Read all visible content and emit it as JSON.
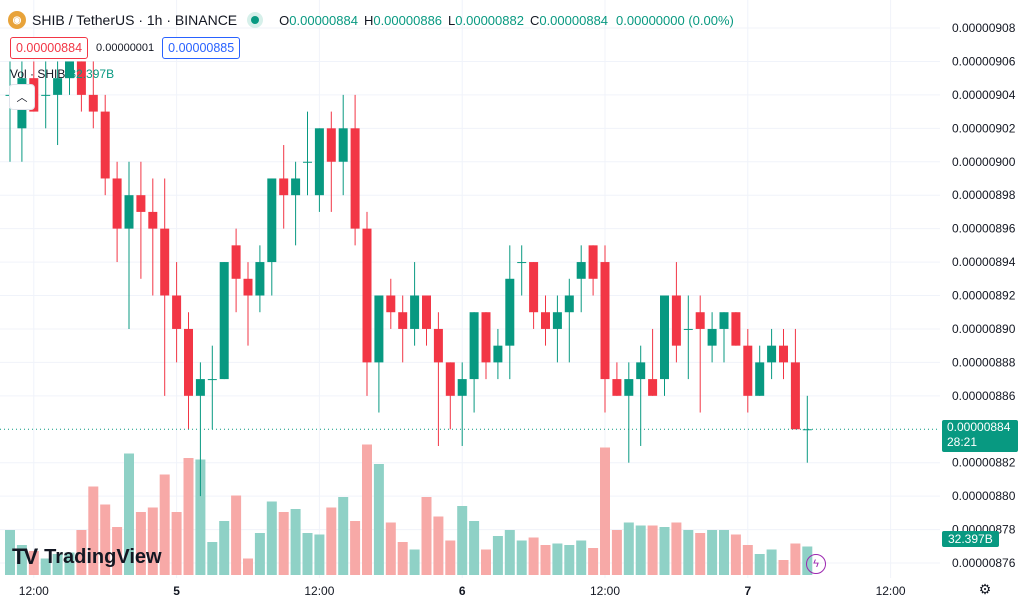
{
  "header": {
    "symbol": "SHIB",
    "separator": "/",
    "quote": "TetherUS",
    "interval": "1h",
    "exchange": "BINANCE",
    "title": "SHIB / TetherUS · 1h · BINANCE",
    "logo_icon": "shib-logo-icon",
    "market_status": "market-open-dot-icon"
  },
  "ohlc": {
    "o_label": "O",
    "o": "0.00000884",
    "h_label": "H",
    "h": "0.00000886",
    "l_label": "L",
    "l": "0.00000882",
    "c_label": "C",
    "c": "0.00000884",
    "change": "0.00000000 (0.00%)"
  },
  "trade": {
    "sell": "0.00000884",
    "spread": "0.00000001",
    "buy": "0.00000885"
  },
  "volume_legend": {
    "label": "Vol · SHIB",
    "value": "32.397B"
  },
  "brand": {
    "mark": "TV",
    "name": "TradingView"
  },
  "last_price_tag": {
    "price": "0.00000884",
    "countdown": "28:21"
  },
  "volume_tag": "32.397B",
  "icons": {
    "collapse": "chevron-up-icon",
    "alert": "lightning-icon",
    "settings": "gear-icon"
  },
  "colors": {
    "up": "#089981",
    "down": "#f23645",
    "up_volume": "#8fd1c6",
    "down_volume": "#f7a9a7",
    "last_price_line": "#089981",
    "grid": "#f0f3fa"
  },
  "chart_data": {
    "type": "candlestick",
    "y_axis": {
      "min": 8.76e-06,
      "max": 9.08e-06,
      "ticks": [
        "0.00000908",
        "0.00000906",
        "0.00000904",
        "0.00000902",
        "0.00000900",
        "0.00000898",
        "0.00000896",
        "0.00000894",
        "0.00000892",
        "0.00000890",
        "0.00000888",
        "0.00000886",
        "0.00000882",
        "0.00000880",
        "0.00000878",
        "0.00000876"
      ]
    },
    "x_axis": {
      "tick_labels": [
        {
          "label": "12:00",
          "index": 2
        },
        {
          "label": "5",
          "index": 14
        },
        {
          "label": "12:00",
          "index": 26
        },
        {
          "label": "6",
          "index": 38
        },
        {
          "label": "12:00",
          "index": 50
        },
        {
          "label": "7",
          "index": 62
        },
        {
          "label": "12:00",
          "index": 74
        }
      ],
      "bold_labels": [
        "5",
        "6",
        "7"
      ]
    },
    "grid": true,
    "last_price": 8.84e-06,
    "candles": [
      {
        "o": 9.04e-06,
        "h": 9.06e-06,
        "l": 9e-06,
        "c": 9.04e-06,
        "v": 0.3
      },
      {
        "o": 9.02e-06,
        "h": 9.06e-06,
        "l": 9e-06,
        "c": 9.05e-06,
        "v": 0.2
      },
      {
        "o": 9.05e-06,
        "h": 9.06e-06,
        "l": 9.03e-06,
        "c": 9.03e-06,
        "v": 0.16
      },
      {
        "o": 9.04e-06,
        "h": 9.06e-06,
        "l": 9.02e-06,
        "c": 9.04e-06,
        "v": 0.11
      },
      {
        "o": 9.04e-06,
        "h": 9.06e-06,
        "l": 9.01e-06,
        "c": 9.05e-06,
        "v": 0.14
      },
      {
        "o": 9.05e-06,
        "h": 9.06e-06,
        "l": 9.04e-06,
        "c": 9.06e-06,
        "v": 0.15
      },
      {
        "o": 9.06e-06,
        "h": 9.06e-06,
        "l": 9.03e-06,
        "c": 9.04e-06,
        "v": 0.3
      },
      {
        "o": 9.04e-06,
        "h": 9.06e-06,
        "l": 9.02e-06,
        "c": 9.03e-06,
        "v": 0.59
      },
      {
        "o": 9.03e-06,
        "h": 9.04e-06,
        "l": 8.98e-06,
        "c": 8.99e-06,
        "v": 0.47
      },
      {
        "o": 8.99e-06,
        "h": 9e-06,
        "l": 8.94e-06,
        "c": 8.96e-06,
        "v": 0.32
      },
      {
        "o": 8.96e-06,
        "h": 9e-06,
        "l": 8.9e-06,
        "c": 8.98e-06,
        "v": 0.81
      },
      {
        "o": 8.98e-06,
        "h": 9e-06,
        "l": 8.93e-06,
        "c": 8.97e-06,
        "v": 0.42
      },
      {
        "o": 8.97e-06,
        "h": 8.99e-06,
        "l": 8.92e-06,
        "c": 8.96e-06,
        "v": 0.45
      },
      {
        "o": 8.96e-06,
        "h": 8.99e-06,
        "l": 8.86e-06,
        "c": 8.92e-06,
        "v": 0.67
      },
      {
        "o": 8.92e-06,
        "h": 8.94e-06,
        "l": 8.88e-06,
        "c": 8.9e-06,
        "v": 0.42
      },
      {
        "o": 8.9e-06,
        "h": 8.91e-06,
        "l": 8.84e-06,
        "c": 8.86e-06,
        "v": 0.78
      },
      {
        "o": 8.86e-06,
        "h": 8.88e-06,
        "l": 8.8e-06,
        "c": 8.87e-06,
        "v": 0.77
      },
      {
        "o": 8.87e-06,
        "h": 8.89e-06,
        "l": 8.84e-06,
        "c": 8.87e-06,
        "v": 0.22
      },
      {
        "o": 8.87e-06,
        "h": 8.94e-06,
        "l": 8.87e-06,
        "c": 8.94e-06,
        "v": 0.36
      },
      {
        "o": 8.95e-06,
        "h": 8.96e-06,
        "l": 8.91e-06,
        "c": 8.93e-06,
        "v": 0.53
      },
      {
        "o": 8.93e-06,
        "h": 8.94e-06,
        "l": 8.89e-06,
        "c": 8.92e-06,
        "v": 0.11
      },
      {
        "o": 8.92e-06,
        "h": 8.95e-06,
        "l": 8.91e-06,
        "c": 8.94e-06,
        "v": 0.28
      },
      {
        "o": 8.94e-06,
        "h": 8.99e-06,
        "l": 8.92e-06,
        "c": 8.99e-06,
        "v": 0.49
      },
      {
        "o": 8.99e-06,
        "h": 9.01e-06,
        "l": 8.96e-06,
        "c": 8.98e-06,
        "v": 0.42
      },
      {
        "o": 8.98e-06,
        "h": 9e-06,
        "l": 8.95e-06,
        "c": 8.99e-06,
        "v": 0.44
      },
      {
        "o": 9e-06,
        "h": 9.03e-06,
        "l": 8.98e-06,
        "c": 9e-06,
        "v": 0.28
      },
      {
        "o": 8.98e-06,
        "h": 9.02e-06,
        "l": 8.97e-06,
        "c": 9.02e-06,
        "v": 0.27
      },
      {
        "o": 9.02e-06,
        "h": 9.03e-06,
        "l": 8.97e-06,
        "c": 9e-06,
        "v": 0.45
      },
      {
        "o": 9e-06,
        "h": 9.04e-06,
        "l": 8.98e-06,
        "c": 9.02e-06,
        "v": 0.52
      },
      {
        "o": 9.02e-06,
        "h": 9.04e-06,
        "l": 8.95e-06,
        "c": 8.96e-06,
        "v": 0.36
      },
      {
        "o": 8.96e-06,
        "h": 8.97e-06,
        "l": 8.86e-06,
        "c": 8.88e-06,
        "v": 0.87
      },
      {
        "o": 8.88e-06,
        "h": 8.92e-06,
        "l": 8.85e-06,
        "c": 8.92e-06,
        "v": 0.74
      },
      {
        "o": 8.92e-06,
        "h": 8.93e-06,
        "l": 8.9e-06,
        "c": 8.91e-06,
        "v": 0.35
      },
      {
        "o": 8.91e-06,
        "h": 8.92e-06,
        "l": 8.88e-06,
        "c": 8.9e-06,
        "v": 0.22
      },
      {
        "o": 8.9e-06,
        "h": 8.94e-06,
        "l": 8.89e-06,
        "c": 8.92e-06,
        "v": 0.17
      },
      {
        "o": 8.92e-06,
        "h": 8.92e-06,
        "l": 8.89e-06,
        "c": 8.9e-06,
        "v": 0.52
      },
      {
        "o": 8.9e-06,
        "h": 8.91e-06,
        "l": 8.83e-06,
        "c": 8.88e-06,
        "v": 0.39
      },
      {
        "o": 8.88e-06,
        "h": 8.88e-06,
        "l": 8.84e-06,
        "c": 8.86e-06,
        "v": 0.23
      },
      {
        "o": 8.86e-06,
        "h": 8.88e-06,
        "l": 8.83e-06,
        "c": 8.87e-06,
        "v": 0.46
      },
      {
        "o": 8.87e-06,
        "h": 8.91e-06,
        "l": 8.85e-06,
        "c": 8.91e-06,
        "v": 0.36
      },
      {
        "o": 8.91e-06,
        "h": 8.91e-06,
        "l": 8.87e-06,
        "c": 8.88e-06,
        "v": 0.17
      },
      {
        "o": 8.88e-06,
        "h": 8.9e-06,
        "l": 8.87e-06,
        "c": 8.89e-06,
        "v": 0.26
      },
      {
        "o": 8.89e-06,
        "h": 8.95e-06,
        "l": 8.87e-06,
        "c": 8.93e-06,
        "v": 0.3
      },
      {
        "o": 8.94e-06,
        "h": 8.95e-06,
        "l": 8.92e-06,
        "c": 8.94e-06,
        "v": 0.23
      },
      {
        "o": 8.94e-06,
        "h": 8.94e-06,
        "l": 8.9e-06,
        "c": 8.91e-06,
        "v": 0.25
      },
      {
        "o": 8.91e-06,
        "h": 8.92e-06,
        "l": 8.89e-06,
        "c": 8.9e-06,
        "v": 0.2
      },
      {
        "o": 8.9e-06,
        "h": 8.92e-06,
        "l": 8.88e-06,
        "c": 8.91e-06,
        "v": 0.21
      },
      {
        "o": 8.91e-06,
        "h": 8.93e-06,
        "l": 8.88e-06,
        "c": 8.92e-06,
        "v": 0.2
      },
      {
        "o": 8.93e-06,
        "h": 8.95e-06,
        "l": 8.91e-06,
        "c": 8.94e-06,
        "v": 0.23
      },
      {
        "o": 8.95e-06,
        "h": 8.95e-06,
        "l": 8.92e-06,
        "c": 8.93e-06,
        "v": 0.18
      },
      {
        "o": 8.94e-06,
        "h": 8.95e-06,
        "l": 8.85e-06,
        "c": 8.87e-06,
        "v": 0.85
      },
      {
        "o": 8.87e-06,
        "h": 8.88e-06,
        "l": 8.86e-06,
        "c": 8.86e-06,
        "v": 0.3
      },
      {
        "o": 8.86e-06,
        "h": 8.88e-06,
        "l": 8.82e-06,
        "c": 8.87e-06,
        "v": 0.35
      },
      {
        "o": 8.87e-06,
        "h": 8.89e-06,
        "l": 8.83e-06,
        "c": 8.88e-06,
        "v": 0.33
      },
      {
        "o": 8.87e-06,
        "h": 8.9e-06,
        "l": 8.86e-06,
        "c": 8.86e-06,
        "v": 0.33
      },
      {
        "o": 8.87e-06,
        "h": 8.92e-06,
        "l": 8.86e-06,
        "c": 8.92e-06,
        "v": 0.32
      },
      {
        "o": 8.92e-06,
        "h": 8.94e-06,
        "l": 8.88e-06,
        "c": 8.89e-06,
        "v": 0.35
      },
      {
        "o": 8.9e-06,
        "h": 8.92e-06,
        "l": 8.87e-06,
        "c": 8.9e-06,
        "v": 0.3
      },
      {
        "o": 8.91e-06,
        "h": 8.92e-06,
        "l": 8.85e-06,
        "c": 8.9e-06,
        "v": 0.28
      },
      {
        "o": 8.89e-06,
        "h": 8.91e-06,
        "l": 8.88e-06,
        "c": 8.9e-06,
        "v": 0.3
      },
      {
        "o": 8.9e-06,
        "h": 8.91e-06,
        "l": 8.88e-06,
        "c": 8.91e-06,
        "v": 0.3
      },
      {
        "o": 8.91e-06,
        "h": 8.91e-06,
        "l": 8.89e-06,
        "c": 8.89e-06,
        "v": 0.27
      },
      {
        "o": 8.89e-06,
        "h": 8.9e-06,
        "l": 8.85e-06,
        "c": 8.86e-06,
        "v": 0.2
      },
      {
        "o": 8.86e-06,
        "h": 8.89e-06,
        "l": 8.86e-06,
        "c": 8.88e-06,
        "v": 0.14
      },
      {
        "o": 8.88e-06,
        "h": 8.9e-06,
        "l": 8.87e-06,
        "c": 8.89e-06,
        "v": 0.17
      },
      {
        "o": 8.89e-06,
        "h": 8.9e-06,
        "l": 8.87e-06,
        "c": 8.88e-06,
        "v": 0.1
      },
      {
        "o": 8.88e-06,
        "h": 8.9e-06,
        "l": 8.84e-06,
        "c": 8.84e-06,
        "v": 0.21
      },
      {
        "o": 8.84e-06,
        "h": 8.86e-06,
        "l": 8.82e-06,
        "c": 8.84e-06,
        "v": 0.19
      }
    ]
  }
}
